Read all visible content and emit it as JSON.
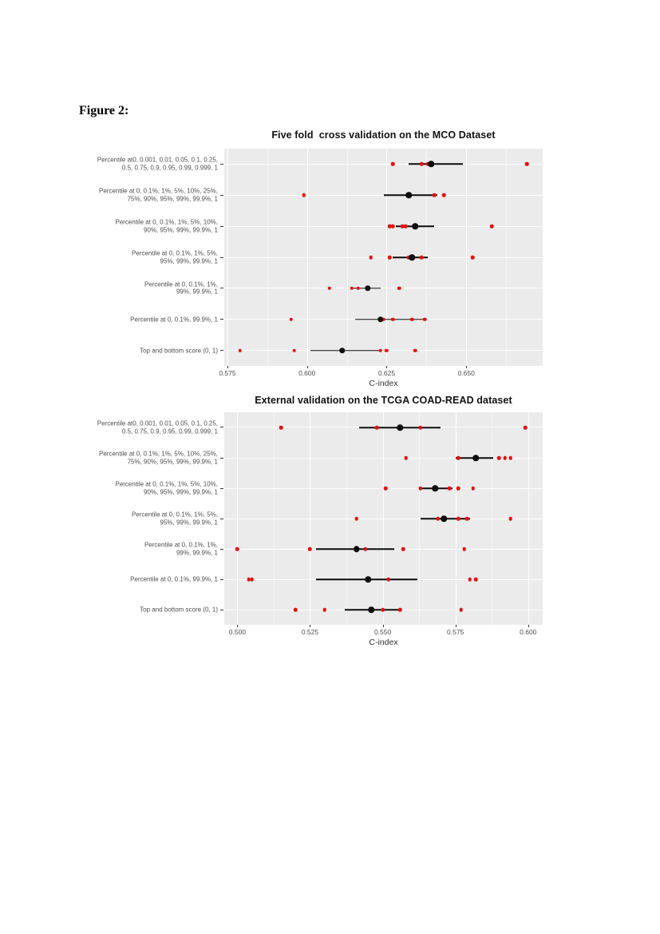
{
  "figure_label": "Figure 2:",
  "style": {
    "panel_bg": "#ebebeb",
    "grid_major": "#ffffff",
    "grid_minor": "#f5f5f5",
    "point_red": "#e31111",
    "mean_black": "#0d0d0d",
    "axis_text": "#4d4d4d"
  },
  "chart_data": [
    {
      "type": "scatter",
      "title": "Five fold  cross validation on the MCO Dataset",
      "xlabel": "C-index",
      "xlim": [
        0.574,
        0.674
      ],
      "x_ticks": [
        0.575,
        0.6,
        0.625,
        0.65
      ],
      "x_tick_labels": [
        "0.575",
        "0.600",
        "0.625",
        "0.650"
      ],
      "x_minor_gridlines": [
        0.5875,
        0.6125,
        0.6375,
        0.6625
      ],
      "grid": "grey panel, white major/minor gridlines",
      "legend": null,
      "point_series_name": "fold C-index (red points)",
      "mean_series_name": "mean C-index with interval (black point, line)",
      "rows": [
        {
          "label_lines": [
            "Percentile at0, 0.001, 0.01, 0.05, 0.1, 0.25,",
            "0.5, 0.75, 0.9, 0.95, 0.99, 0.999, 1"
          ],
          "mean": 0.639,
          "ci": [
            0.632,
            0.649
          ],
          "fold_points": [
            0.627,
            0.636,
            0.638,
            0.669
          ]
        },
        {
          "label_lines": [
            "Percentile at 0, 0.1%, 1%, 5%, 10%, 25%,",
            "75%, 90%, 95%, 99%, 99.9%, 1"
          ],
          "mean": 0.632,
          "ci": [
            0.624,
            0.641
          ],
          "fold_points": [
            0.599,
            0.64,
            0.643
          ]
        },
        {
          "label_lines": [
            "Percentile at 0, 0.1%, 1%, 5%, 10%,",
            "90%, 95%, 99%, 99.9%, 1"
          ],
          "mean": 0.634,
          "ci": [
            0.628,
            0.64
          ],
          "fold_points": [
            0.626,
            0.627,
            0.63,
            0.631,
            0.658
          ]
        },
        {
          "label_lines": [
            "Percentile at 0, 0.1%, 1%, 5%,",
            "95%, 99%, 99.9%, 1"
          ],
          "mean": 0.633,
          "ci": [
            0.627,
            0.638
          ],
          "fold_points": [
            0.62,
            0.626,
            0.632,
            0.636,
            0.652
          ]
        },
        {
          "label_lines": [
            "Percentile at 0, 0.1%, 1%,",
            "99%, 99.9%, 1"
          ],
          "mean": 0.619,
          "ci": [
            0.614,
            0.623
          ],
          "fold_points": [
            0.607,
            0.614,
            0.616,
            0.629
          ]
        },
        {
          "label_lines": [
            "Percentile at 0, 0.1%, 99.9%, 1"
          ],
          "mean": 0.623,
          "ci": [
            0.615,
            0.637
          ],
          "fold_points": [
            0.595,
            0.624,
            0.627,
            0.633,
            0.637
          ]
        },
        {
          "label_lines": [
            "Top and bottom score (0, 1)"
          ],
          "mean": 0.611,
          "ci": [
            0.601,
            0.623
          ],
          "fold_points": [
            0.579,
            0.596,
            0.623,
            0.625,
            0.634
          ]
        }
      ]
    },
    {
      "type": "scatter",
      "title": "External validation on the TCGA COAD-READ dataset",
      "xlabel": "C-index",
      "xlim": [
        0.4955,
        0.605
      ],
      "x_ticks": [
        0.5,
        0.525,
        0.55,
        0.575,
        0.6
      ],
      "x_tick_labels": [
        "0.500",
        "0.525",
        "0.550",
        "0.575",
        "0.600"
      ],
      "x_minor_gridlines": [
        0.5125,
        0.5375,
        0.5625,
        0.5875
      ],
      "grid": "grey panel, white major/minor gridlines",
      "legend": null,
      "point_series_name": "fold C-index (red points)",
      "mean_series_name": "mean C-index with interval (black point, line)",
      "rows": [
        {
          "label_lines": [
            "Percentile at0, 0.001, 0.01, 0.05, 0.1, 0.25,",
            "0.5, 0.75, 0.9, 0.95, 0.99, 0.999, 1"
          ],
          "mean": 0.556,
          "ci": [
            0.542,
            0.57
          ],
          "fold_points": [
            0.515,
            0.548,
            0.563,
            0.599
          ]
        },
        {
          "label_lines": [
            "Percentile at 0, 0.1%, 1%, 5%, 10%, 25%,",
            "75%, 90%, 95%, 99%, 99.9%, 1"
          ],
          "mean": 0.582,
          "ci": [
            0.575,
            0.588
          ],
          "fold_points": [
            0.558,
            0.576,
            0.59,
            0.592,
            0.594
          ]
        },
        {
          "label_lines": [
            "Percentile at 0, 0.1%, 1%, 5%, 10%,",
            "90%, 95%, 99%, 99.9%, 1"
          ],
          "mean": 0.568,
          "ci": [
            0.563,
            0.574
          ],
          "fold_points": [
            0.551,
            0.563,
            0.573,
            0.576,
            0.581
          ]
        },
        {
          "label_lines": [
            "Percentile at 0, 0.1%, 1%, 5%,",
            "95%, 99%, 99.9%, 1"
          ],
          "mean": 0.571,
          "ci": [
            0.563,
            0.58
          ],
          "fold_points": [
            0.541,
            0.569,
            0.576,
            0.579,
            0.594
          ]
        },
        {
          "label_lines": [
            "Percentile at 0, 0.1%, 1%,",
            "99%, 99.9%, 1"
          ],
          "mean": 0.541,
          "ci": [
            0.527,
            0.554
          ],
          "fold_points": [
            0.5,
            0.525,
            0.544,
            0.557,
            0.578
          ]
        },
        {
          "label_lines": [
            "Percentile at 0, 0.1%, 99.9%, 1"
          ],
          "mean": 0.545,
          "ci": [
            0.527,
            0.562
          ],
          "fold_points": [
            0.504,
            0.505,
            0.552,
            0.58,
            0.582
          ]
        },
        {
          "label_lines": [
            "Top and bottom score (0, 1)"
          ],
          "mean": 0.546,
          "ci": [
            0.537,
            0.556
          ],
          "fold_points": [
            0.52,
            0.53,
            0.55,
            0.556,
            0.577
          ]
        }
      ]
    }
  ]
}
